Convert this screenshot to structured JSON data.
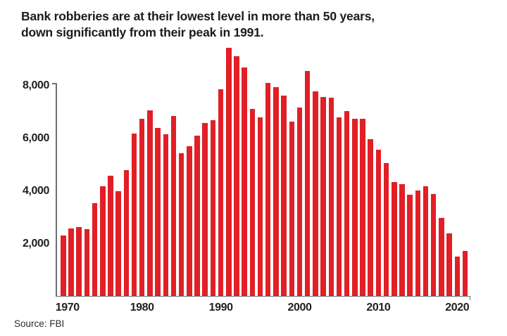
{
  "header": {
    "title_line1": "Bank robberies are at their lowest level in more than 50 years,",
    "title_line2": "down significantly from their peak in 1991."
  },
  "source": {
    "label": "Source: FBI"
  },
  "chart_data": {
    "type": "bar",
    "title": "Bank robberies are at their lowest level in more than 50 years, down significantly from their peak in 1991.",
    "x": [
      1970,
      1971,
      1972,
      1973,
      1974,
      1975,
      1976,
      1977,
      1978,
      1979,
      1980,
      1981,
      1982,
      1983,
      1984,
      1985,
      1986,
      1987,
      1988,
      1989,
      1990,
      1991,
      1992,
      1993,
      1994,
      1995,
      1996,
      1997,
      1998,
      1999,
      2000,
      2001,
      2002,
      2003,
      2004,
      2005,
      2006,
      2007,
      2008,
      2009,
      2010,
      2011,
      2012,
      2013,
      2014,
      2015,
      2016,
      2017,
      2018,
      2019,
      2020,
      2021
    ],
    "values": [
      2290,
      2560,
      2610,
      2510,
      3520,
      4140,
      4540,
      3970,
      4760,
      6150,
      6700,
      7030,
      6370,
      6120,
      6810,
      5410,
      5670,
      6070,
      6540,
      6660,
      7830,
      9400,
      9080,
      8650,
      7090,
      6770,
      8070,
      7900,
      7580,
      6590,
      7130,
      8510,
      7740,
      7540,
      7520,
      6770,
      6990,
      6720,
      6720,
      5940,
      5540,
      5030,
      4320,
      4220,
      3830,
      3990,
      4150,
      3860,
      2940,
      2370,
      1480,
      1690
    ],
    "y_ticks": [
      2000,
      4000,
      6000,
      8000
    ],
    "y_tick_labels": [
      "2,000",
      "4,000",
      "6,000",
      "8,000"
    ],
    "x_tick_years": [
      1970,
      1980,
      1990,
      2000,
      2010,
      2020
    ],
    "x_tick_labels": [
      "1970",
      "1980",
      "1990",
      "2000",
      "2010",
      "2020"
    ],
    "ylim": [
      0,
      8100
    ],
    "grid": false,
    "legend": null,
    "bar_color": "#e11f26",
    "axis_color": "#6d6e71",
    "source_label": "Source: FBI"
  }
}
